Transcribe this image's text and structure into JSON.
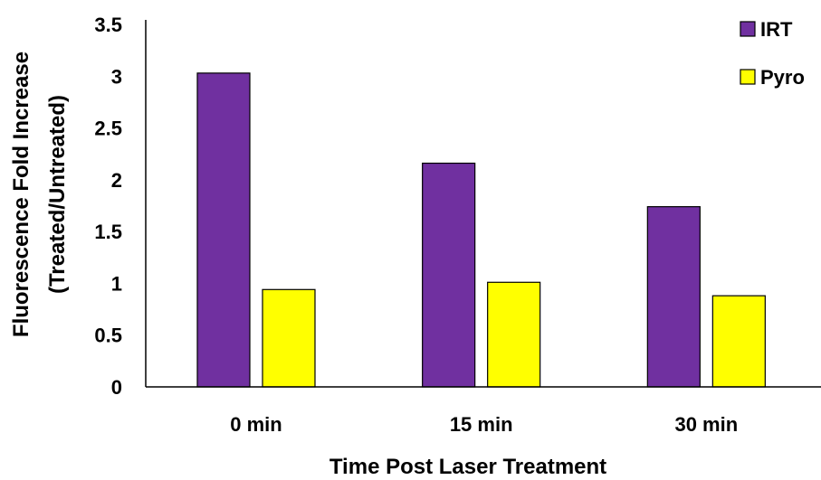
{
  "chart_data": {
    "type": "bar",
    "categories": [
      "0 min",
      "15 min",
      "30 min"
    ],
    "series": [
      {
        "name": "IRT",
        "values": [
          3.03,
          2.16,
          1.74
        ],
        "color": "#7030A0"
      },
      {
        "name": "Pyro",
        "values": [
          0.94,
          1.01,
          0.88
        ],
        "color": "#FFFF00"
      }
    ],
    "ylim": [
      0,
      3.5
    ],
    "yticks": [
      0,
      0.5,
      1,
      1.5,
      2,
      2.5,
      3,
      3.5
    ],
    "ytick_labels": [
      "0",
      "0.5",
      "1",
      "1.5",
      "2",
      "2.5",
      "3",
      "3.5"
    ],
    "xlabel": "Time Post Laser Treatment",
    "ylabel_lines": [
      "Fluorescence Fold Increase",
      "(Treated/Untreated)"
    ],
    "legend_position": "top-right",
    "grid": false
  }
}
